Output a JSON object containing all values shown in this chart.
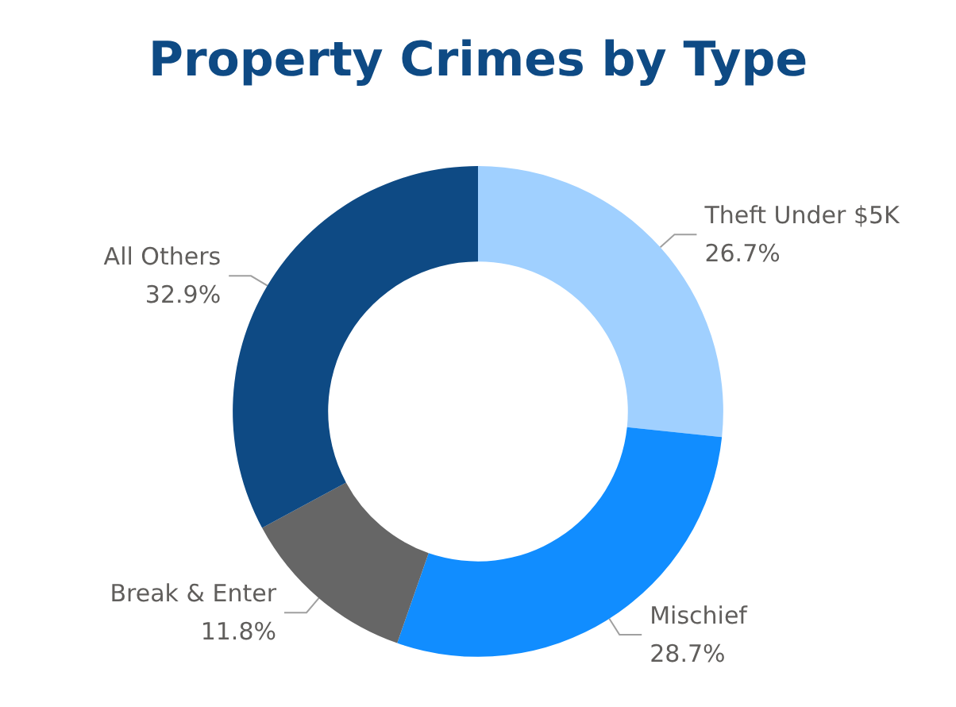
{
  "chart_data": {
    "type": "donut",
    "title": "Property Crimes by Type",
    "categories": [
      "Theft Under $5K",
      "Mischief",
      "Break & Enter",
      "All Others"
    ],
    "values": [
      26.7,
      28.7,
      11.8,
      32.9
    ],
    "value_labels": [
      "26.7%",
      "28.7%",
      "11.8%",
      "32.9%"
    ],
    "colors": [
      "#a0d0ff",
      "#118dff",
      "#666666",
      "#0e4a84"
    ],
    "legend": false
  }
}
